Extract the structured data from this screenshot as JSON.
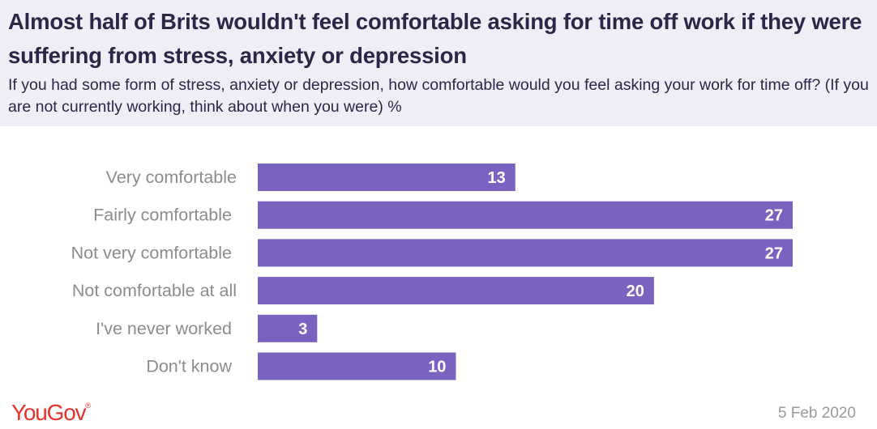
{
  "header": {
    "title": "Almost half of Brits wouldn't feel comfortable asking for time off work if they were suffering from stress, anxiety or depression",
    "subtitle": "If you had some form of stress, anxiety or depression, how comfortable would you feel asking your work for time off? (If you are not currently working, think about when you were) %"
  },
  "footer": {
    "brand": "YouGov",
    "date": "5 Feb 2020"
  },
  "colors": {
    "bar": "#7a63c0",
    "header_bg": "#efedf6",
    "title": "#2b2747",
    "brand": "#e8322c"
  },
  "chart_data": {
    "type": "bar",
    "orientation": "horizontal",
    "categories": [
      "Very comfortable",
      "Fairly comfortable",
      "Not very comfortable",
      "Not comfortable at all",
      "I've never worked",
      "Don't know"
    ],
    "values": [
      13,
      27,
      27,
      20,
      3,
      10
    ],
    "value_labels": [
      "13",
      "27",
      "27",
      "20",
      "3",
      "10"
    ],
    "xlim": [
      0,
      27
    ],
    "grid": false,
    "legend": "none"
  }
}
